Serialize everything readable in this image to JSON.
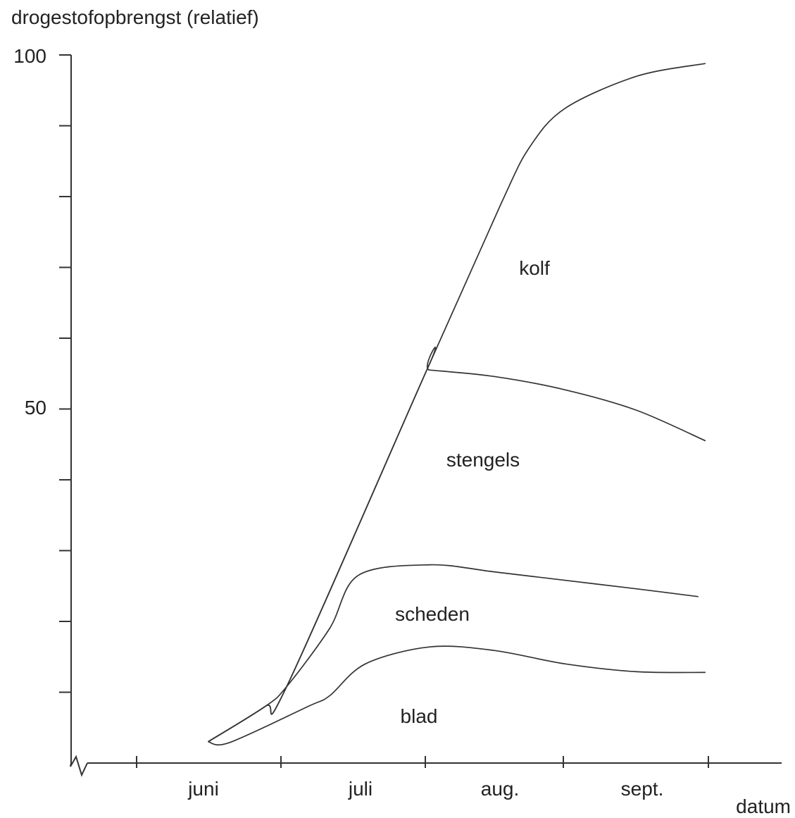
{
  "chart_data": {
    "type": "area",
    "ylabel": "drogestofopbrengst (relatief)",
    "xlabel": "datum",
    "ylim": [
      0,
      100
    ],
    "y_tick_labels": [
      "50",
      "100"
    ],
    "x_tick_labels": [
      "juni",
      "juli",
      "aug.",
      "sept."
    ],
    "area_labels": [
      "kolf",
      "stengels",
      "scheden",
      "blad"
    ],
    "x_months": [
      0,
      1,
      2,
      3,
      4
    ],
    "series": [
      {
        "name": "blad",
        "x": [
          0.5,
          0.65,
          1.2,
          1.35,
          1.6,
          2.05,
          2.5,
          3.0,
          3.5,
          3.98
        ],
        "values": [
          3.0,
          2.9,
          8.0,
          9.5,
          14.0,
          16.4,
          15.9,
          14.0,
          12.9,
          12.8
        ]
      },
      {
        "name": "scheden",
        "x": [
          0.5,
          0.9,
          1.05,
          1.35,
          1.55,
          2.05,
          2.5,
          3.0,
          3.5,
          3.93
        ],
        "values": [
          3.0,
          8.0,
          10.8,
          19.0,
          26.5,
          28.0,
          27.0,
          25.8,
          24.6,
          23.5
        ]
      },
      {
        "name": "stengels",
        "x": [
          0.5,
          0.9,
          1.05,
          2.03,
          2.05,
          2.5,
          3.0,
          3.5,
          3.98
        ],
        "values": [
          3.0,
          8.0,
          10.8,
          55.5,
          55.5,
          54.6,
          52.7,
          49.8,
          45.5
        ]
      },
      {
        "name": "kolf",
        "x": [
          0.5,
          0.9,
          1.05,
          2.03,
          2.55,
          2.75,
          3.0,
          3.5,
          3.98
        ],
        "values": [
          3.0,
          8.0,
          10.8,
          55.5,
          79.0,
          87.0,
          92.5,
          97.0,
          98.8
        ]
      }
    ]
  }
}
